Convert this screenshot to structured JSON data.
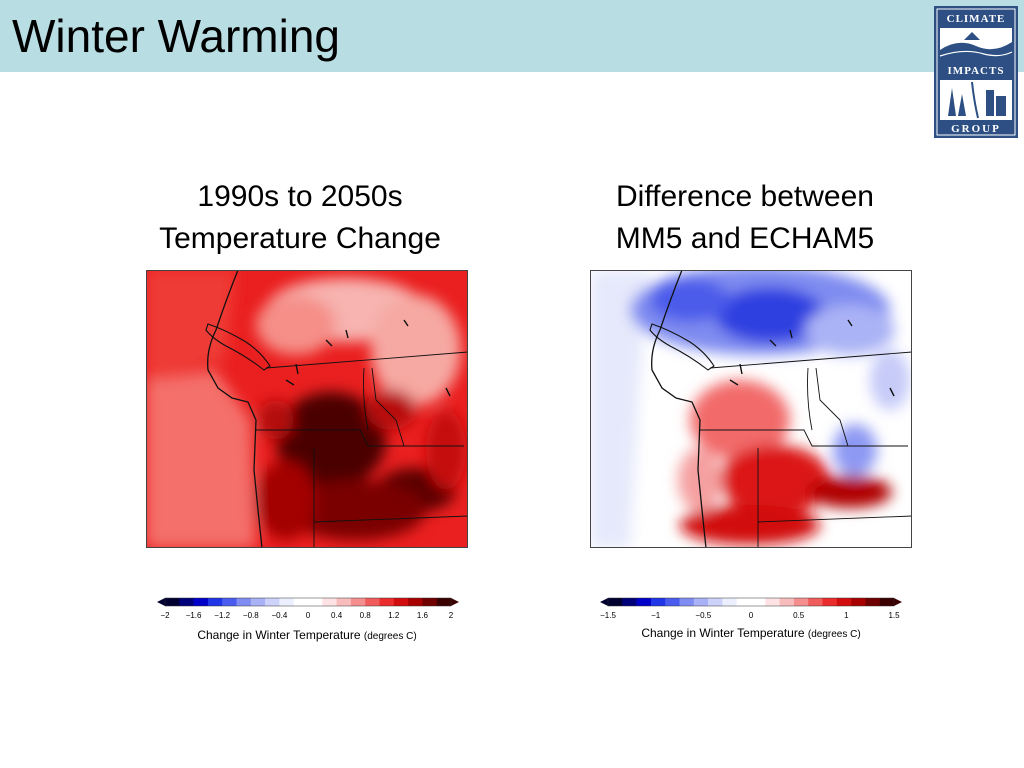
{
  "slide": {
    "title": "Winter Warming"
  },
  "logo": {
    "line1": "CLIMATE",
    "line2": "IMPACTS",
    "line3": "GROUP",
    "icon": "climate-impacts-group-logo"
  },
  "panel_left": {
    "title_line1": "1990s to 2050s",
    "title_line2": "Temperature Change",
    "colorbar": {
      "ticks": [
        "−2",
        "−1.6",
        "−1.2",
        "−0.8",
        "−0.4",
        "0",
        "0.4",
        "0.8",
        "1.2",
        "1.6",
        "2"
      ],
      "caption_main": "Change in Winter Temperature",
      "caption_unit": "(degrees C)"
    }
  },
  "panel_right": {
    "title_line1": "Difference between",
    "title_line2": "MM5 and ECHAM5",
    "colorbar": {
      "ticks": [
        "−1.5",
        "−1",
        "−0.5",
        "0",
        "0.5",
        "1",
        "1.5"
      ],
      "caption_main": "Change in Winter Temperature",
      "caption_unit": "(degrees C)"
    }
  },
  "colors": {
    "title_bar": "#b8dde2",
    "logo_navy": "#2d4f84",
    "warm": "#e0191b",
    "cool": "#2232d6"
  }
}
